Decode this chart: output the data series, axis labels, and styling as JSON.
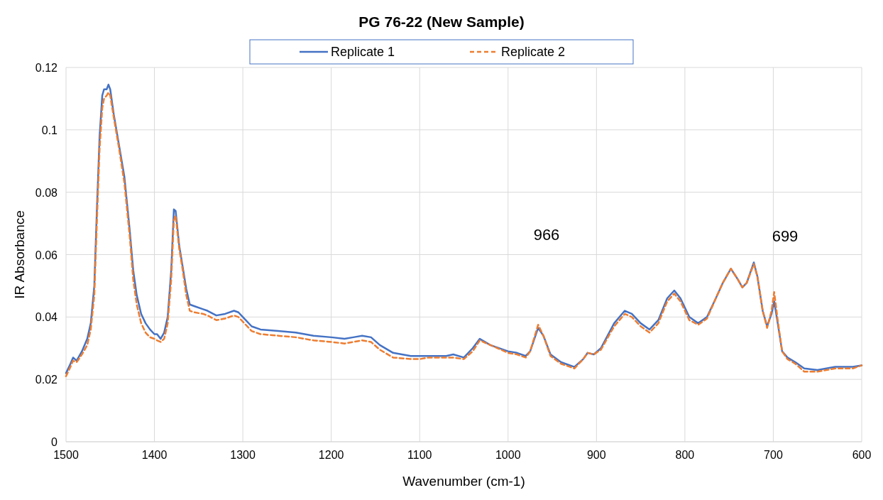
{
  "chart_data": {
    "type": "line",
    "title": "PG 76-22 (New Sample)",
    "xlabel": "Wavenumber (cm-1)",
    "ylabel": "IR Absorbance",
    "x": [
      1500,
      1495,
      1492,
      1488,
      1482,
      1476,
      1472,
      1468,
      1465,
      1462,
      1459,
      1457,
      1454,
      1452,
      1450,
      1446,
      1440,
      1434,
      1428,
      1424,
      1420,
      1415,
      1410,
      1405,
      1400,
      1397,
      1393,
      1389,
      1385,
      1381,
      1378,
      1376,
      1372,
      1368,
      1364,
      1360,
      1355,
      1345,
      1340,
      1330,
      1320,
      1310,
      1305,
      1300,
      1290,
      1280,
      1260,
      1240,
      1220,
      1200,
      1185,
      1175,
      1165,
      1155,
      1145,
      1130,
      1110,
      1100,
      1090,
      1070,
      1062,
      1050,
      1040,
      1032,
      1020,
      1000,
      990,
      980,
      975,
      966,
      960,
      952,
      940,
      925,
      915,
      910,
      903,
      895,
      880,
      868,
      860,
      850,
      840,
      830,
      820,
      812,
      805,
      795,
      785,
      775,
      765,
      757,
      748,
      740,
      735,
      730,
      722,
      718,
      712,
      707,
      702,
      699,
      695,
      690,
      684,
      675,
      665,
      650,
      640,
      630,
      620,
      610,
      600
    ],
    "series": [
      {
        "name": "Replicate 1",
        "color": "#4472c4",
        "line_style": "solid",
        "values": [
          0.022,
          0.025,
          0.027,
          0.026,
          0.029,
          0.033,
          0.038,
          0.05,
          0.075,
          0.098,
          0.111,
          0.113,
          0.113,
          0.1145,
          0.113,
          0.105,
          0.095,
          0.085,
          0.068,
          0.055,
          0.047,
          0.041,
          0.038,
          0.036,
          0.0345,
          0.0345,
          0.033,
          0.035,
          0.04,
          0.055,
          0.0745,
          0.074,
          0.063,
          0.056,
          0.049,
          0.044,
          0.0435,
          0.0425,
          0.042,
          0.0405,
          0.041,
          0.042,
          0.0415,
          0.04,
          0.037,
          0.036,
          0.0355,
          0.035,
          0.034,
          0.0335,
          0.033,
          0.0335,
          0.034,
          0.0335,
          0.031,
          0.0285,
          0.0275,
          0.0275,
          0.0275,
          0.0275,
          0.028,
          0.027,
          0.03,
          0.033,
          0.031,
          0.029,
          0.0285,
          0.0275,
          0.029,
          0.0365,
          0.034,
          0.028,
          0.0255,
          0.024,
          0.0265,
          0.0285,
          0.028,
          0.03,
          0.038,
          0.042,
          0.041,
          0.038,
          0.036,
          0.039,
          0.046,
          0.0485,
          0.046,
          0.04,
          0.038,
          0.04,
          0.046,
          0.051,
          0.0555,
          0.052,
          0.0495,
          0.051,
          0.0575,
          0.053,
          0.042,
          0.037,
          0.041,
          0.045,
          0.038,
          0.029,
          0.027,
          0.0255,
          0.0235,
          0.023,
          0.0235,
          0.024,
          0.024,
          0.024,
          0.0245
        ]
      },
      {
        "name": "Replicate 2",
        "color": "#ed7d31",
        "line_style": "dashed",
        "values": [
          0.021,
          0.024,
          0.026,
          0.0255,
          0.028,
          0.031,
          0.036,
          0.047,
          0.071,
          0.094,
          0.107,
          0.11,
          0.111,
          0.112,
          0.111,
          0.104,
          0.094,
          0.083,
          0.066,
          0.052,
          0.044,
          0.038,
          0.035,
          0.0335,
          0.033,
          0.0325,
          0.032,
          0.033,
          0.038,
          0.052,
          0.071,
          0.0725,
          0.062,
          0.055,
          0.047,
          0.042,
          0.0415,
          0.041,
          0.0405,
          0.039,
          0.0395,
          0.0405,
          0.04,
          0.0385,
          0.0355,
          0.0345,
          0.034,
          0.0335,
          0.0325,
          0.032,
          0.0315,
          0.032,
          0.0325,
          0.032,
          0.0295,
          0.027,
          0.0265,
          0.0265,
          0.027,
          0.027,
          0.027,
          0.0265,
          0.029,
          0.0325,
          0.031,
          0.0285,
          0.028,
          0.027,
          0.029,
          0.0375,
          0.034,
          0.0275,
          0.025,
          0.0235,
          0.0265,
          0.0285,
          0.028,
          0.0295,
          0.037,
          0.041,
          0.04,
          0.037,
          0.035,
          0.038,
          0.045,
          0.0475,
          0.045,
          0.039,
          0.0375,
          0.0395,
          0.046,
          0.051,
          0.0555,
          0.052,
          0.0495,
          0.051,
          0.057,
          0.053,
          0.042,
          0.0365,
          0.042,
          0.048,
          0.039,
          0.029,
          0.0265,
          0.025,
          0.0225,
          0.0225,
          0.023,
          0.0235,
          0.0235,
          0.0235,
          0.0245
        ]
      }
    ],
    "xlim": [
      1500,
      600
    ],
    "xticks": [
      1500,
      1400,
      1300,
      1200,
      1100,
      1000,
      900,
      800,
      700,
      600
    ],
    "ylim": [
      0,
      0.12
    ],
    "yticks": [
      0,
      0.02,
      0.04,
      0.06,
      0.08,
      0.1,
      0.12
    ],
    "annotations": [
      "966",
      "699"
    ],
    "grid": true,
    "legend": "top",
    "marker": "none"
  }
}
